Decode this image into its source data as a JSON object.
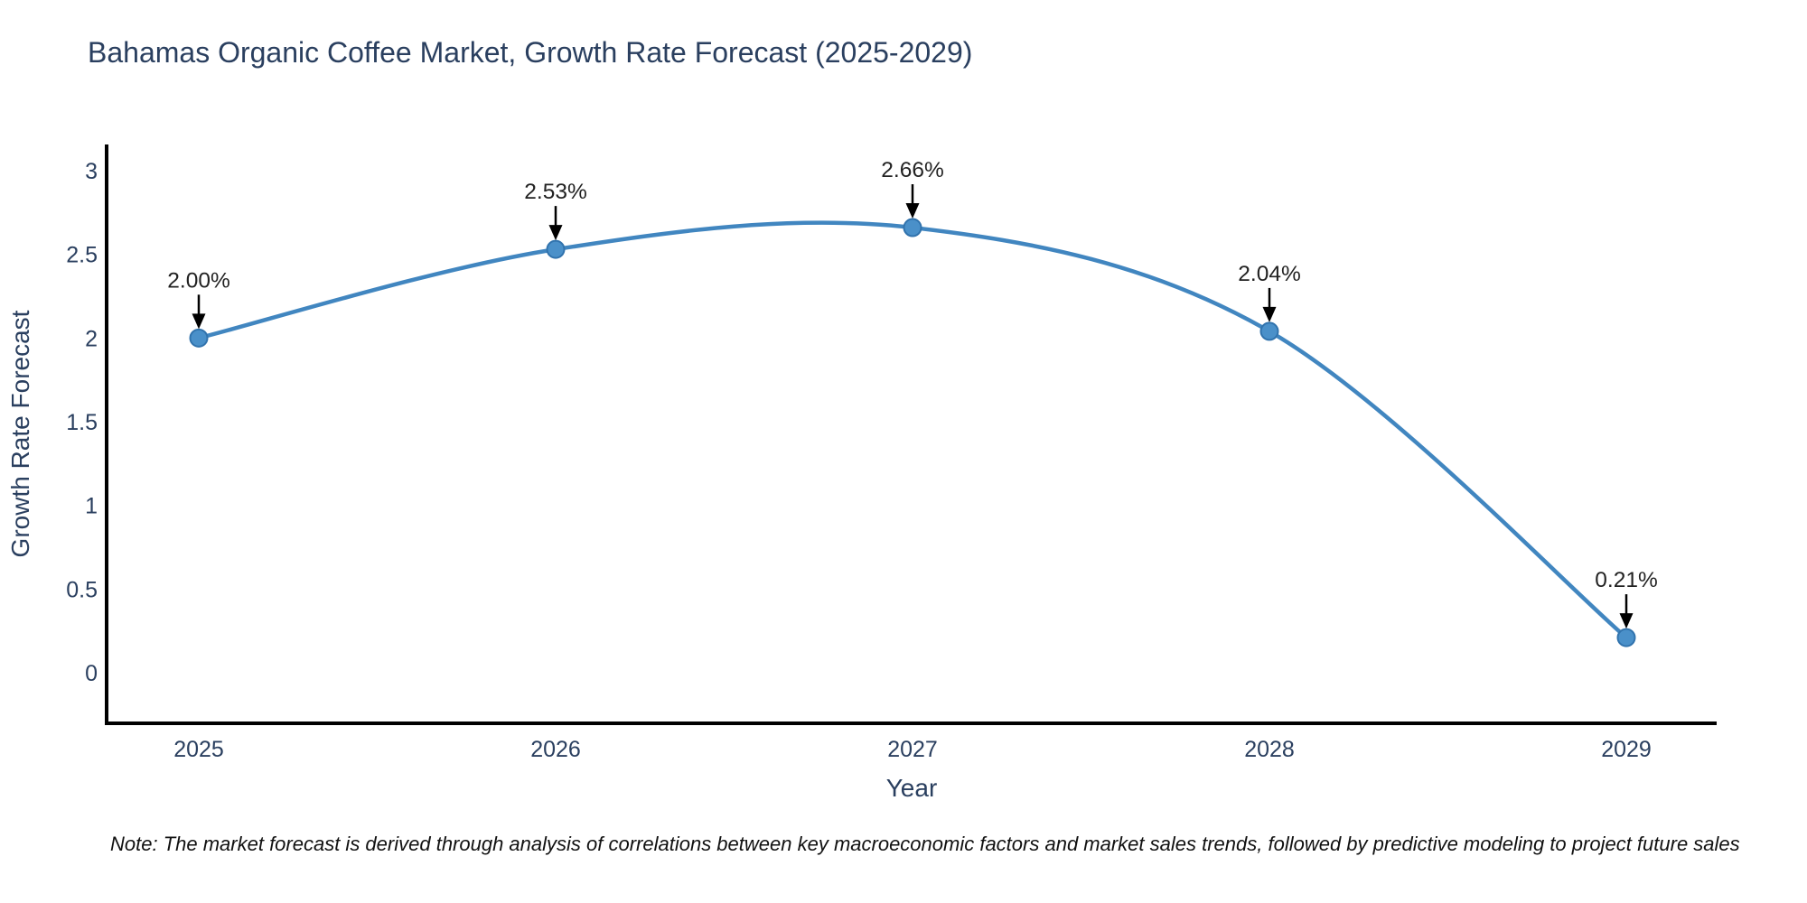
{
  "chart_data": {
    "type": "line",
    "title": "Bahamas Organic Coffee Market, Growth Rate Forecast (2025-2029)",
    "xlabel": "Year",
    "ylabel": "Growth Rate Forecast",
    "x": [
      2025,
      2026,
      2027,
      2028,
      2029
    ],
    "values": [
      2.0,
      2.53,
      2.66,
      2.04,
      0.21
    ],
    "series": [
      {
        "name": "Growth Rate Forecast",
        "values": [
          2.0,
          2.53,
          2.66,
          2.04,
          0.21
        ]
      }
    ],
    "point_labels": [
      "2.00%",
      "2.53%",
      "2.66%",
      "2.04%",
      "0.21%"
    ],
    "x_tick_labels": [
      "2025",
      "2026",
      "2027",
      "2028",
      "2029"
    ],
    "y_ticks": [
      0,
      0.5,
      1,
      1.5,
      2,
      2.5,
      3
    ],
    "y_tick_labels": [
      "0",
      "0.5",
      "1",
      "1.5",
      "2",
      "2.5",
      "3"
    ],
    "xlim": [
      2024.74,
      2029.25
    ],
    "ylim": [
      -0.3,
      3.16
    ],
    "grid": false,
    "legend_position": "none",
    "curve": "spline",
    "line_color": "#4186c0",
    "marker_color": "#4a90c9",
    "marker_edge_color": "#3173ad",
    "axis_color": "#000000",
    "text_color": "#2a3f5f",
    "annotation_color": "#222222",
    "arrow_color": "#000000",
    "background_color": "#ffffff"
  },
  "note": "Note: The market forecast is derived through analysis of correlations between key macroeconomic factors and market sales trends, followed by predictive modeling to project future sales"
}
